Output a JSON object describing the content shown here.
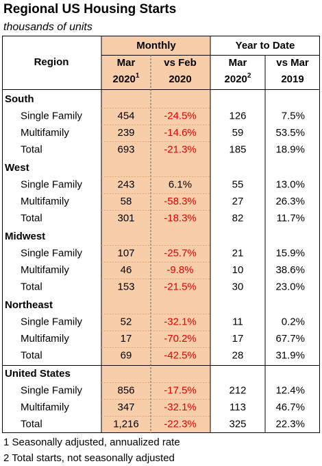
{
  "header": {
    "title": "Regional US Housing Starts",
    "subtitle": "thousands of units"
  },
  "table": {
    "group_headers": [
      "Monthly",
      "Year to Date"
    ],
    "columns": [
      {
        "line1": "Region"
      },
      {
        "line1": "Mar",
        "line2": "2020",
        "sup": "1"
      },
      {
        "line1": "vs Feb",
        "line2": "2020"
      },
      {
        "line1": "Mar",
        "line2": "2020",
        "sup": "2"
      },
      {
        "line1": "vs Mar",
        "line2": "2019"
      }
    ],
    "sections": [
      {
        "name": "South",
        "rows": [
          [
            "Single Family",
            "454",
            "-24.5%",
            "126",
            "7.5%"
          ],
          [
            "Multifamily",
            "239",
            "-14.6%",
            "59",
            "53.5%"
          ],
          [
            "Total",
            "693",
            "-21.3%",
            "185",
            "18.9%"
          ]
        ]
      },
      {
        "name": "West",
        "rows": [
          [
            "Single Family",
            "243",
            "6.1%",
            "55",
            "13.0%"
          ],
          [
            "Multifamily",
            "58",
            "-58.3%",
            "27",
            "26.3%"
          ],
          [
            "Total",
            "301",
            "-18.3%",
            "82",
            "11.7%"
          ]
        ]
      },
      {
        "name": "Midwest",
        "rows": [
          [
            "Single Family",
            "107",
            "-25.7%",
            "21",
            "15.9%"
          ],
          [
            "Multifamily",
            "46",
            "-9.8%",
            "10",
            "38.6%"
          ],
          [
            "Total",
            "153",
            "-21.5%",
            "30",
            "23.0%"
          ]
        ]
      },
      {
        "name": "Northeast",
        "rows": [
          [
            "Single Family",
            "52",
            "-32.1%",
            "11",
            "0.2%"
          ],
          [
            "Multifamily",
            "17",
            "-70.2%",
            "17",
            "67.7%"
          ],
          [
            "Total",
            "69",
            "-42.5%",
            "28",
            "31.9%"
          ]
        ]
      },
      {
        "name": "United States",
        "rows": [
          [
            "Single Family",
            "856",
            "-17.5%",
            "212",
            "12.4%"
          ],
          [
            "Multifamily",
            "347",
            "-32.1%",
            "113",
            "46.7%"
          ],
          [
            "Total",
            "1,216",
            "-22.3%",
            "325",
            "22.3%"
          ]
        ]
      }
    ]
  },
  "footnotes": [
    "1 Seasonally adjusted, annualized rate",
    "2 Total starts, not seasonally adjusted"
  ]
}
